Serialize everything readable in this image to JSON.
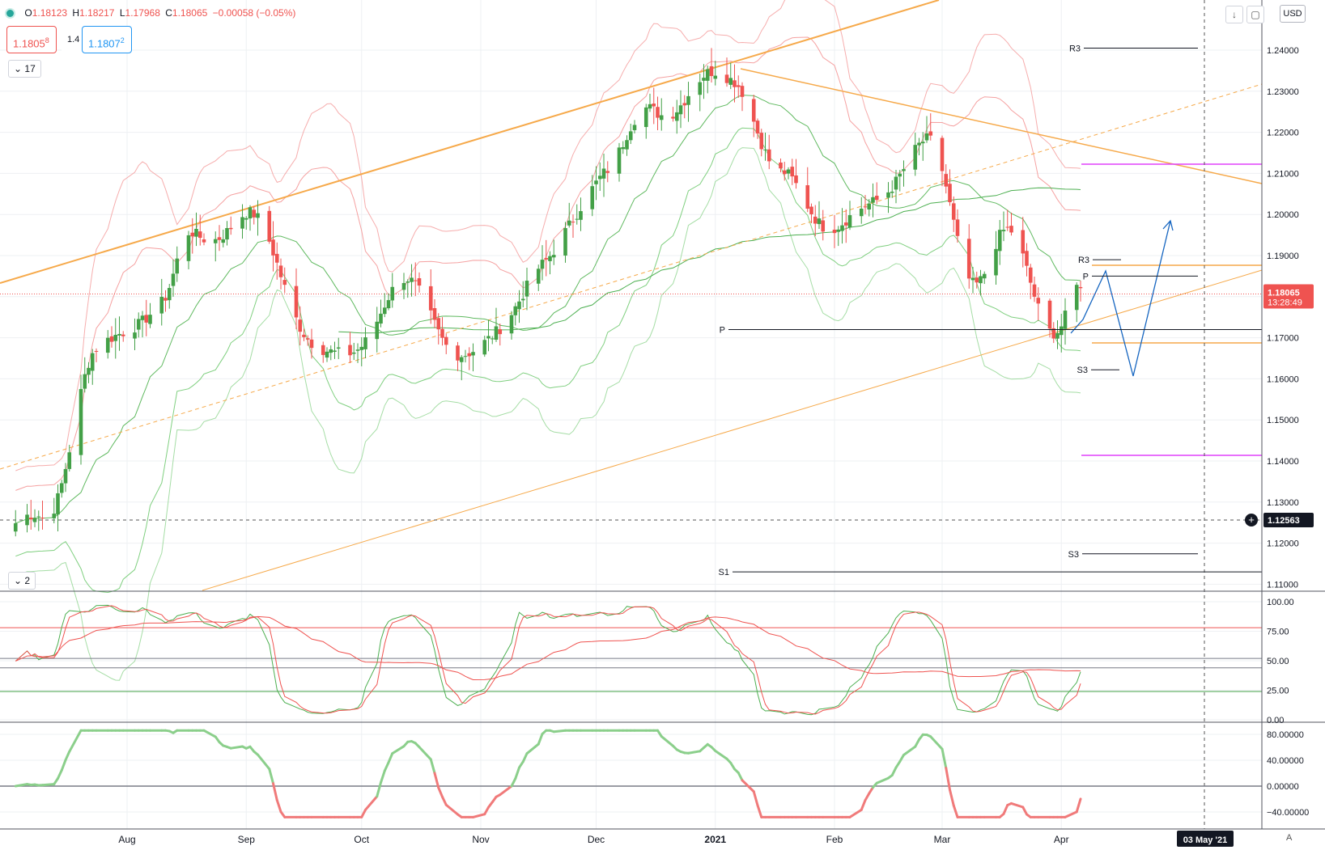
{
  "header": {
    "ohlc": [
      {
        "key": "O",
        "value": "1.18123"
      },
      {
        "key": "H",
        "value": "1.18217"
      },
      {
        "key": "L",
        "value": "1.17968"
      },
      {
        "key": "C",
        "value": "1.18065"
      }
    ],
    "change": "−0.00058 (−0.05%)",
    "sell_main": "1.1805",
    "sell_sup": "8",
    "spread": "1.4",
    "buy_main": "1.1807",
    "buy_sup": "2",
    "indicator_count_main": "17",
    "indicator_count_sub": "2",
    "currency": "USD",
    "auto_label": "A"
  },
  "colors": {
    "up": "#43a047",
    "down": "#ef5350",
    "orange": "#f6a94a",
    "bb_red": "#f28a8a",
    "bb_green": "#7fcf7f",
    "pivot": "#131722",
    "magenta": "#e040fb",
    "blue": "#1565c0"
  },
  "chart_data": {
    "type": "candlestick",
    "symbol_price": "1.18065",
    "countdown": "13:28:49",
    "crosshair_price": "1.12563",
    "crosshair_date": "03 May '21",
    "x_ticks": [
      "Aug",
      "Sep",
      "Oct",
      "Nov",
      "Dec",
      "2021",
      "Feb",
      "Mar",
      "Apr"
    ],
    "y_ticks": [
      "1.24000",
      "1.23000",
      "1.22000",
      "1.21000",
      "1.20000",
      "1.19000",
      "1.18000",
      "1.17000",
      "1.16000",
      "1.15000",
      "1.14000",
      "1.13000",
      "1.12000",
      "1.11000"
    ],
    "y_range": [
      1.11,
      1.24
    ],
    "anchors": {
      "dates": [
        "2020-07-10",
        "2020-07-24",
        "2020-08-10",
        "2020-08-18",
        "2020-08-31",
        "2020-09-24",
        "2020-10-12",
        "2020-10-30",
        "2020-11-17",
        "2020-12-04",
        "2020-12-16",
        "2021-01-06",
        "2021-01-18",
        "2021-02-03",
        "2021-02-25",
        "2021-03-10",
        "2021-03-18",
        "2021-03-31",
        "2021-04-06"
      ],
      "close": [
        1.1245,
        1.166,
        1.179,
        1.194,
        1.199,
        1.164,
        1.182,
        1.165,
        1.187,
        1.212,
        1.226,
        1.234,
        1.208,
        1.197,
        1.216,
        1.185,
        1.194,
        1.1725,
        1.1806
      ]
    },
    "pivots": [
      {
        "label": "R3",
        "price": 1.2405
      },
      {
        "label": "R3",
        "price": 1.189
      },
      {
        "label": "P",
        "price": 1.185
      },
      {
        "label": "P",
        "price": 1.172
      },
      {
        "label": "S3",
        "price": 1.1622
      },
      {
        "label": "S3",
        "price": 1.1174
      },
      {
        "label": "S1",
        "price": 1.113
      }
    ],
    "stochastic": {
      "y_ticks": [
        "100.00",
        "75.00",
        "50.00",
        "25.00",
        "0.00"
      ],
      "levels": [
        78,
        52,
        44,
        24
      ]
    },
    "momentum": {
      "y_ticks": [
        "80.00000",
        "40.00000",
        "0.00000",
        "−40.00000"
      ],
      "range": [
        -48,
        86
      ]
    }
  }
}
